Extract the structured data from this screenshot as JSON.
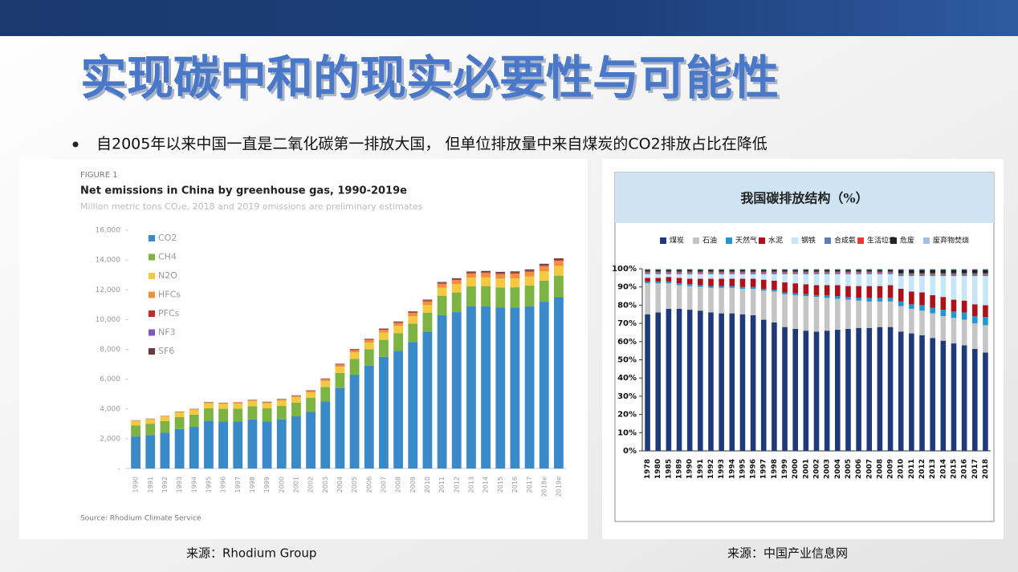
{
  "slide": {
    "title": "实现碳中和的现实必要性与可能性",
    "bullet": "自2005年以来中国一直是二氧化碳第一排放大国， 但单位排放量中来自煤炭的CO2排放占比在降低",
    "source_left": "来源：Rhodium Group",
    "source_right": "来源：中国产业信息网"
  },
  "chart_data": [
    {
      "type": "bar",
      "stacked": true,
      "figure_label": "FIGURE 1",
      "title": "Net emissions in China by greenhouse gas, 1990-2019e",
      "subtitle": "Million metric tons CO₂e, 2018 and 2019 emissions are preliminary estimates",
      "source": "Source: Rhodium Climate Service",
      "categories": [
        "1990",
        "1991",
        "1992",
        "1993",
        "1994",
        "1995",
        "1996",
        "1997",
        "1998",
        "1999",
        "2000",
        "2001",
        "2002",
        "2003",
        "2004",
        "2005",
        "2006",
        "2007",
        "2008",
        "2009",
        "2010",
        "2011",
        "2012",
        "2013",
        "2014",
        "2015",
        "2016",
        "2017",
        "2018e",
        "2019e"
      ],
      "series": [
        {
          "name": "CO2",
          "color": "#3a8ac9",
          "values": [
            2150,
            2250,
            2400,
            2650,
            2800,
            3200,
            3150,
            3150,
            3300,
            3150,
            3300,
            3500,
            3800,
            4500,
            5400,
            6300,
            6900,
            7500,
            7900,
            8500,
            9200,
            10300,
            10500,
            10900,
            10900,
            10800,
            10800,
            10900,
            11200,
            11500
          ]
        },
        {
          "name": "CH4",
          "color": "#7cb342",
          "values": [
            750,
            760,
            780,
            800,
            820,
            850,
            860,
            870,
            880,
            890,
            900,
            920,
            940,
            980,
            1020,
            1060,
            1100,
            1140,
            1180,
            1220,
            1260,
            1300,
            1320,
            1340,
            1350,
            1360,
            1370,
            1380,
            1420,
            1450
          ]
        },
        {
          "name": "N2O",
          "color": "#f5c842",
          "values": [
            300,
            300,
            310,
            320,
            330,
            340,
            340,
            350,
            350,
            350,
            360,
            370,
            380,
            400,
            420,
            440,
            460,
            480,
            500,
            510,
            530,
            550,
            560,
            570,
            580,
            590,
            600,
            610,
            630,
            650
          ]
        },
        {
          "name": "HFCs",
          "color": "#f0903c",
          "values": [
            20,
            20,
            25,
            30,
            30,
            40,
            40,
            50,
            50,
            60,
            70,
            80,
            90,
            110,
            130,
            150,
            170,
            190,
            200,
            220,
            240,
            260,
            270,
            290,
            300,
            310,
            320,
            330,
            340,
            350
          ]
        },
        {
          "name": "PFCs",
          "color": "#c62828",
          "values": [
            10,
            10,
            10,
            10,
            10,
            15,
            15,
            15,
            15,
            15,
            20,
            20,
            20,
            25,
            25,
            30,
            30,
            35,
            35,
            35,
            40,
            40,
            45,
            45,
            45,
            50,
            50,
            50,
            50,
            50
          ]
        },
        {
          "name": "NF3",
          "color": "#7e57c2",
          "values": [
            0,
            0,
            0,
            0,
            0,
            0,
            0,
            0,
            0,
            0,
            0,
            0,
            1,
            1,
            2,
            2,
            3,
            3,
            4,
            4,
            5,
            5,
            6,
            6,
            7,
            7,
            8,
            8,
            9,
            9
          ]
        },
        {
          "name": "SF6",
          "color": "#6d3b3b",
          "values": [
            10,
            10,
            10,
            10,
            15,
            15,
            15,
            15,
            20,
            20,
            20,
            25,
            25,
            30,
            35,
            40,
            45,
            50,
            55,
            60,
            65,
            70,
            75,
            80,
            85,
            90,
            90,
            95,
            100,
            100
          ]
        }
      ],
      "ylim": [
        0,
        16000
      ],
      "yticks": [
        {
          "value": 0,
          "label": "-"
        },
        {
          "value": 2000,
          "label": "2,000"
        },
        {
          "value": 4000,
          "label": "4,000"
        },
        {
          "value": 6000,
          "label": "6,000"
        },
        {
          "value": 8000,
          "label": "8,000"
        },
        {
          "value": 10000,
          "label": "10,000"
        },
        {
          "value": 12000,
          "label": "12,000"
        },
        {
          "value": 14000,
          "label": "14,000"
        },
        {
          "value": 16000,
          "label": "16,000"
        }
      ],
      "grid": false
    },
    {
      "type": "bar",
      "stacked": true,
      "title": "我国碳排放结构（%）",
      "categories": [
        "1978",
        "1980",
        "1985",
        "1989",
        "1990",
        "1991",
        "1992",
        "1993",
        "1994",
        "1995",
        "1996",
        "1997",
        "1998",
        "1999",
        "2000",
        "2001",
        "2002",
        "2003",
        "2004",
        "2005",
        "2006",
        "2007",
        "2008",
        "2009",
        "2010",
        "2011",
        "2012",
        "2013",
        "2014",
        "2015",
        "2016",
        "2017",
        "2018"
      ],
      "series": [
        {
          "name": "煤炭",
          "color": "#1f3a7a",
          "values": [
            75,
            76,
            78,
            78,
            77.5,
            77,
            76,
            75.5,
            75.5,
            75,
            74.5,
            72,
            70.5,
            68,
            67,
            66,
            65.5,
            66,
            66.5,
            67,
            67.5,
            67.5,
            68,
            68,
            65.5,
            64.5,
            63.5,
            62,
            60.5,
            59,
            58,
            56,
            54
          ]
        },
        {
          "name": "石油",
          "color": "#c4c4c4",
          "values": [
            17,
            16,
            14,
            13,
            13,
            13,
            13.5,
            14,
            14,
            14,
            14.5,
            16,
            17,
            18,
            18.5,
            19,
            19,
            18,
            17,
            16,
            15,
            14.5,
            14,
            14,
            14,
            13.5,
            13.5,
            13.5,
            13.5,
            14,
            14,
            14,
            15
          ]
        },
        {
          "name": "天然气",
          "color": "#2196d3",
          "values": [
            1,
            1,
            1,
            1,
            1,
            1,
            1,
            1,
            1,
            1,
            1,
            1,
            1,
            1,
            1,
            1,
            1,
            1.5,
            1.5,
            1.5,
            1.5,
            2,
            2,
            2,
            2.5,
            2.5,
            3,
            3,
            3.5,
            3.5,
            4,
            4,
            4.5
          ]
        },
        {
          "name": "水泥",
          "color": "#b0101a",
          "values": [
            2,
            2,
            2.5,
            3,
            3,
            3.5,
            4,
            4,
            4,
            4.5,
            4.5,
            5,
            5,
            5.5,
            5.5,
            5.5,
            5.5,
            5.5,
            6,
            6,
            6.5,
            6.5,
            6.5,
            7,
            7,
            7,
            7,
            7,
            7,
            6.5,
            6.5,
            6.5,
            6.5
          ]
        },
        {
          "name": "钢铁",
          "color": "#c4e6f7",
          "values": [
            2,
            2,
            1.5,
            2,
            2.5,
            2.5,
            2.5,
            2.5,
            2.5,
            2.5,
            2.5,
            3,
            3.5,
            4.5,
            5,
            5.5,
            6,
            6,
            6,
            6.5,
            6.5,
            6.5,
            6.5,
            6,
            7,
            8.5,
            9,
            10.5,
            11.5,
            13,
            13.5,
            15.5,
            16
          ]
        },
        {
          "name": "合成氨",
          "color": "#5b7fb8",
          "values": [
            1,
            1,
            1,
            1,
            1,
            1,
            1,
            1,
            1,
            1,
            1,
            1,
            1,
            1,
            1,
            1,
            1,
            1,
            1,
            1,
            1,
            1,
            1,
            1,
            1,
            1,
            1,
            1,
            1,
            1,
            1,
            1,
            1
          ]
        },
        {
          "name": "生活垃圾",
          "color": "#e53935",
          "values": [
            0.5,
            0.5,
            0.5,
            0.5,
            0.5,
            0.5,
            0.5,
            0.5,
            0.5,
            0.5,
            0.5,
            0.5,
            0.5,
            0.5,
            0.5,
            0.5,
            0.5,
            0.5,
            0.5,
            0.5,
            0.5,
            0.5,
            0.5,
            0.5,
            0.5,
            0.5,
            0.5,
            0.5,
            0.5,
            0.5,
            0.5,
            0.5,
            0.5
          ]
        },
        {
          "name": "危废",
          "color": "#222222",
          "values": [
            1,
            1,
            1,
            1,
            1,
            1,
            1,
            1,
            1,
            1,
            1,
            1,
            1,
            1,
            1,
            1,
            1,
            1,
            1,
            1,
            1,
            1,
            1,
            1,
            2,
            2,
            2,
            2,
            2,
            2,
            2,
            2,
            2
          ]
        },
        {
          "name": "废弃物焚烧",
          "color": "#9fbde6",
          "values": [
            0.5,
            0.5,
            0.5,
            0.5,
            0.5,
            0.5,
            0.5,
            0.5,
            0.5,
            0.5,
            0.5,
            0.5,
            0.5,
            0.5,
            0.5,
            0.5,
            0.5,
            0.5,
            0.5,
            0.5,
            0.5,
            0.5,
            0.5,
            0.5,
            0.5,
            0.5,
            0.5,
            0.5,
            0.5,
            0.5,
            0.5,
            0.5,
            0.5
          ]
        }
      ],
      "ylim": [
        0,
        100
      ],
      "yticks": [
        {
          "value": 0,
          "label": "0%"
        },
        {
          "value": 10,
          "label": "10%"
        },
        {
          "value": 20,
          "label": "20%"
        },
        {
          "value": 30,
          "label": "30%"
        },
        {
          "value": 40,
          "label": "40%"
        },
        {
          "value": 50,
          "label": "50%"
        },
        {
          "value": 60,
          "label": "60%"
        },
        {
          "value": 70,
          "label": "70%"
        },
        {
          "value": 80,
          "label": "80%"
        },
        {
          "value": 90,
          "label": "90%"
        },
        {
          "value": 100,
          "label": "100%"
        }
      ],
      "grid": false
    }
  ]
}
